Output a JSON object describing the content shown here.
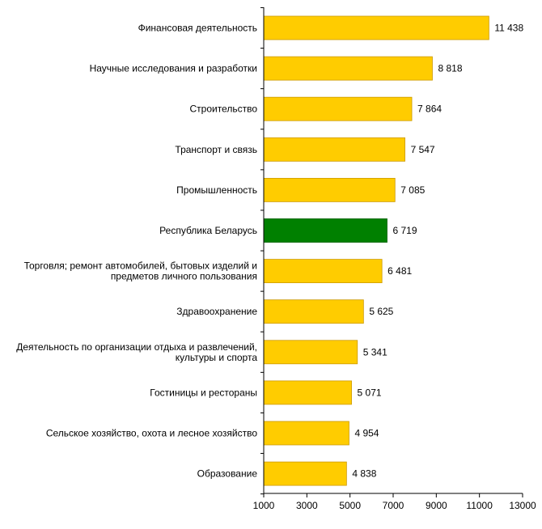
{
  "chart_data": {
    "type": "bar",
    "orientation": "horizontal",
    "categories": [
      [
        "Финансовая деятельность"
      ],
      [
        "Научные исследования и разработки"
      ],
      [
        "Строительство"
      ],
      [
        "Транспорт и связь"
      ],
      [
        "Промышленность"
      ],
      [
        "Республика Беларусь"
      ],
      [
        "Торговля; ремонт автомобилей, бытовых изделий и",
        "предметов личного пользования"
      ],
      [
        "Здравоохранение"
      ],
      [
        "Деятельность по организации отдыха и развлечений,",
        "культуры и спорта"
      ],
      [
        "Гостиницы и рестораны"
      ],
      [
        "Сельское хозяйство, охота и лесное хозяйство"
      ],
      [
        "Образование"
      ]
    ],
    "values": [
      11438,
      8818,
      7864,
      7547,
      7085,
      6719,
      6481,
      5625,
      5341,
      5071,
      4954,
      4838
    ],
    "value_labels": [
      "11 438",
      "8 818",
      "7 864",
      "7 547",
      "7 085",
      "6 719",
      "6 481",
      "5 625",
      "5 341",
      "5 071",
      "4 954",
      "4 838"
    ],
    "xlim": [
      1000,
      13000
    ],
    "xticks": [
      1000,
      3000,
      5000,
      7000,
      9000,
      11000,
      13000
    ],
    "xtick_labels": [
      "1000",
      "3000",
      "5000",
      "7000",
      "9000",
      "11000",
      "13000"
    ],
    "grid": false,
    "colors": {
      "bar": "#FFCC00",
      "bar_border": "#CC9900",
      "highlight": "#008000",
      "highlight_border": "#006000"
    },
    "highlight_category": "Республика Беларусь"
  }
}
